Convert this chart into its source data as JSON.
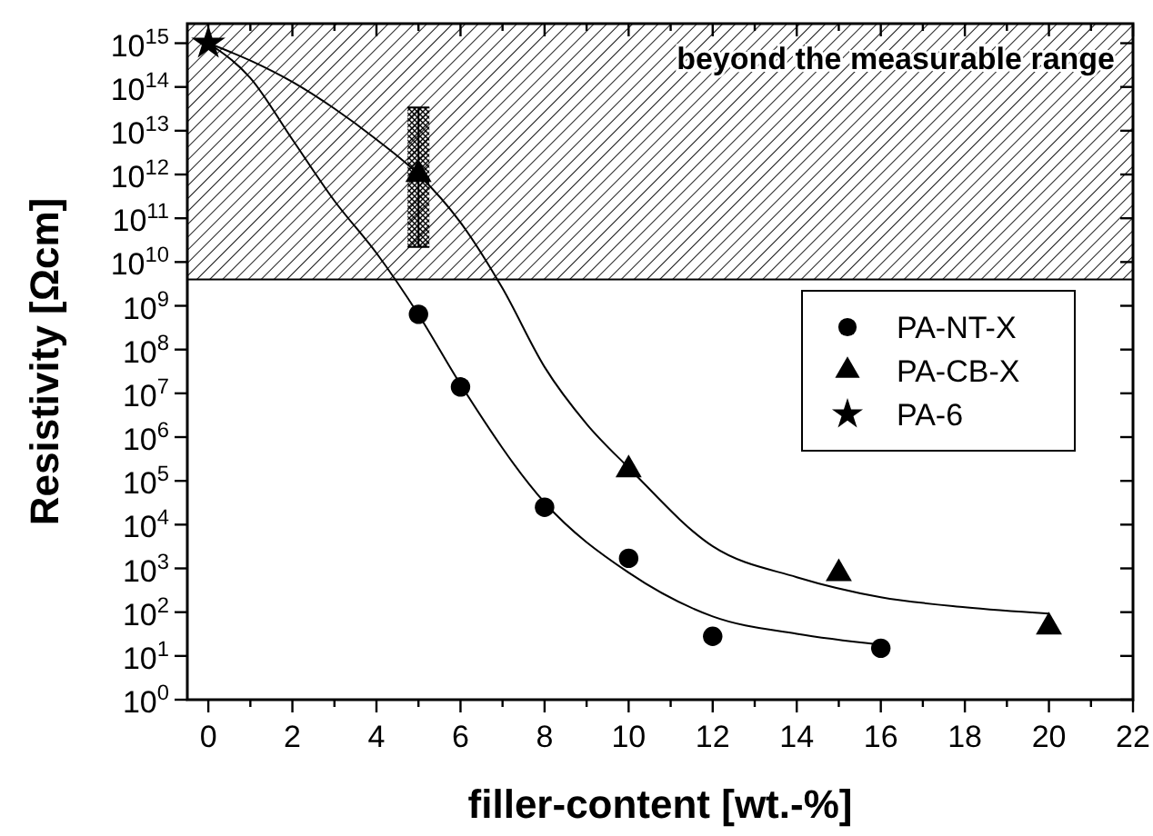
{
  "chart_data": {
    "type": "scatter",
    "xlabel": "filler-content [wt.-%]",
    "ylabel": "Resistivity [Ωcm]",
    "log": "y",
    "xlim": [
      -0.5,
      22
    ],
    "ylim": [
      1,
      2800000000000000.0
    ],
    "xticks": [
      0,
      {
        "value": 1,
        "label": null
      },
      2,
      {
        "value": 3,
        "label": null
      },
      4,
      {
        "value": 5,
        "label": null
      },
      6,
      {
        "value": 7,
        "label": null
      },
      8,
      {
        "value": 9,
        "label": null
      },
      10,
      {
        "value": 11,
        "label": null
      },
      12,
      {
        "value": 13,
        "label": null
      },
      14,
      {
        "value": 15,
        "label": null
      },
      16,
      {
        "value": 17,
        "label": null
      },
      18,
      {
        "value": 19,
        "label": null
      },
      20,
      {
        "value": 21,
        "label": null
      },
      22
    ],
    "yticks": [
      {
        "value": 1,
        "label": "10$^{0}$"
      },
      {
        "value": 10,
        "label": "10$^{1}$"
      },
      {
        "value": 100,
        "label": "10$^{2}$"
      },
      {
        "value": 1000.0,
        "label": "10$^{3}$"
      },
      {
        "value": 10000.0,
        "label": "10$^{4}$"
      },
      {
        "value": 100000.0,
        "label": "10$^{5}$"
      },
      {
        "value": 1000000.0,
        "label": "10$^{6}$"
      },
      {
        "value": 10000000.0,
        "label": "10$^{7}$"
      },
      {
        "value": 100000000.0,
        "label": "10$^{8}$"
      },
      {
        "value": 1000000000.0,
        "label": "10$^{9}$"
      },
      {
        "value": 10000000000.0,
        "label": "10$^{10}$"
      },
      {
        "value": 100000000000.0,
        "label": "10$^{11}$"
      },
      {
        "value": 1000000000000.0,
        "label": "10$^{12}$"
      },
      {
        "value": 10000000000000.0,
        "label": "10$^{13}$"
      },
      {
        "value": 100000000000000.0,
        "label": "10$^{14}$"
      },
      {
        "value": 1000000000000000.0,
        "label": "10$^{15}$"
      }
    ],
    "bands": [
      {
        "axis": "y",
        "from": 4000000000.0,
        "to": 2800000000000000.0,
        "label": "beyond the measurable range",
        "color": "#000000"
      }
    ],
    "legend": "right",
    "grid": false,
    "series": [
      {
        "type": "line",
        "color": "#000000",
        "marker": "none",
        "x": [
          0,
          1,
          2,
          3,
          4,
          5,
          6,
          8,
          10,
          12,
          14,
          16
        ],
        "values": [
          1000000000000000.0,
          160000000000000.0,
          6300000000000.0,
          250000000000.0,
          16000000000.0,
          630000000.0,
          16000000.0,
          32000.0,
          800,
          80,
          32,
          18
        ]
      },
      {
        "type": "line",
        "color": "#000000",
        "marker": "none",
        "x": [
          0,
          1,
          2,
          3,
          4,
          5,
          6,
          7,
          8,
          9,
          10,
          12,
          14,
          16,
          18,
          20
        ],
        "values": [
          1000000000000000.0,
          400000000000000.0,
          130000000000000.0,
          32000000000000.0,
          6300000000000.0,
          1000000000000.0,
          80000000000.0,
          2500000000.0,
          40000000.0,
          2000000.0,
          200000.0,
          3200,
          630,
          220,
          130,
          93
        ]
      },
      {
        "name": "PA-NT-X",
        "color": "#000000",
        "marker": "circle",
        "x": [
          5,
          6,
          8,
          10,
          12,
          16
        ],
        "values": [
          640000000.0,
          14000000.0,
          25000.0,
          1700,
          28,
          15
        ]
      },
      {
        "name": "PA-CB-X",
        "color": "#000000",
        "marker": "triangle",
        "x": [
          5,
          10,
          15,
          20
        ],
        "values": [
          1000000000000.0,
          180000.0,
          760,
          46
        ],
        "errors": [
          [
            22000000000.0,
            34000000000000.0
          ],
          null,
          null,
          null
        ]
      },
      {
        "name": "PA-6",
        "color": "#000000",
        "marker": "star",
        "x": [
          0
        ],
        "values": [
          1000000000000000.0
        ]
      }
    ]
  }
}
